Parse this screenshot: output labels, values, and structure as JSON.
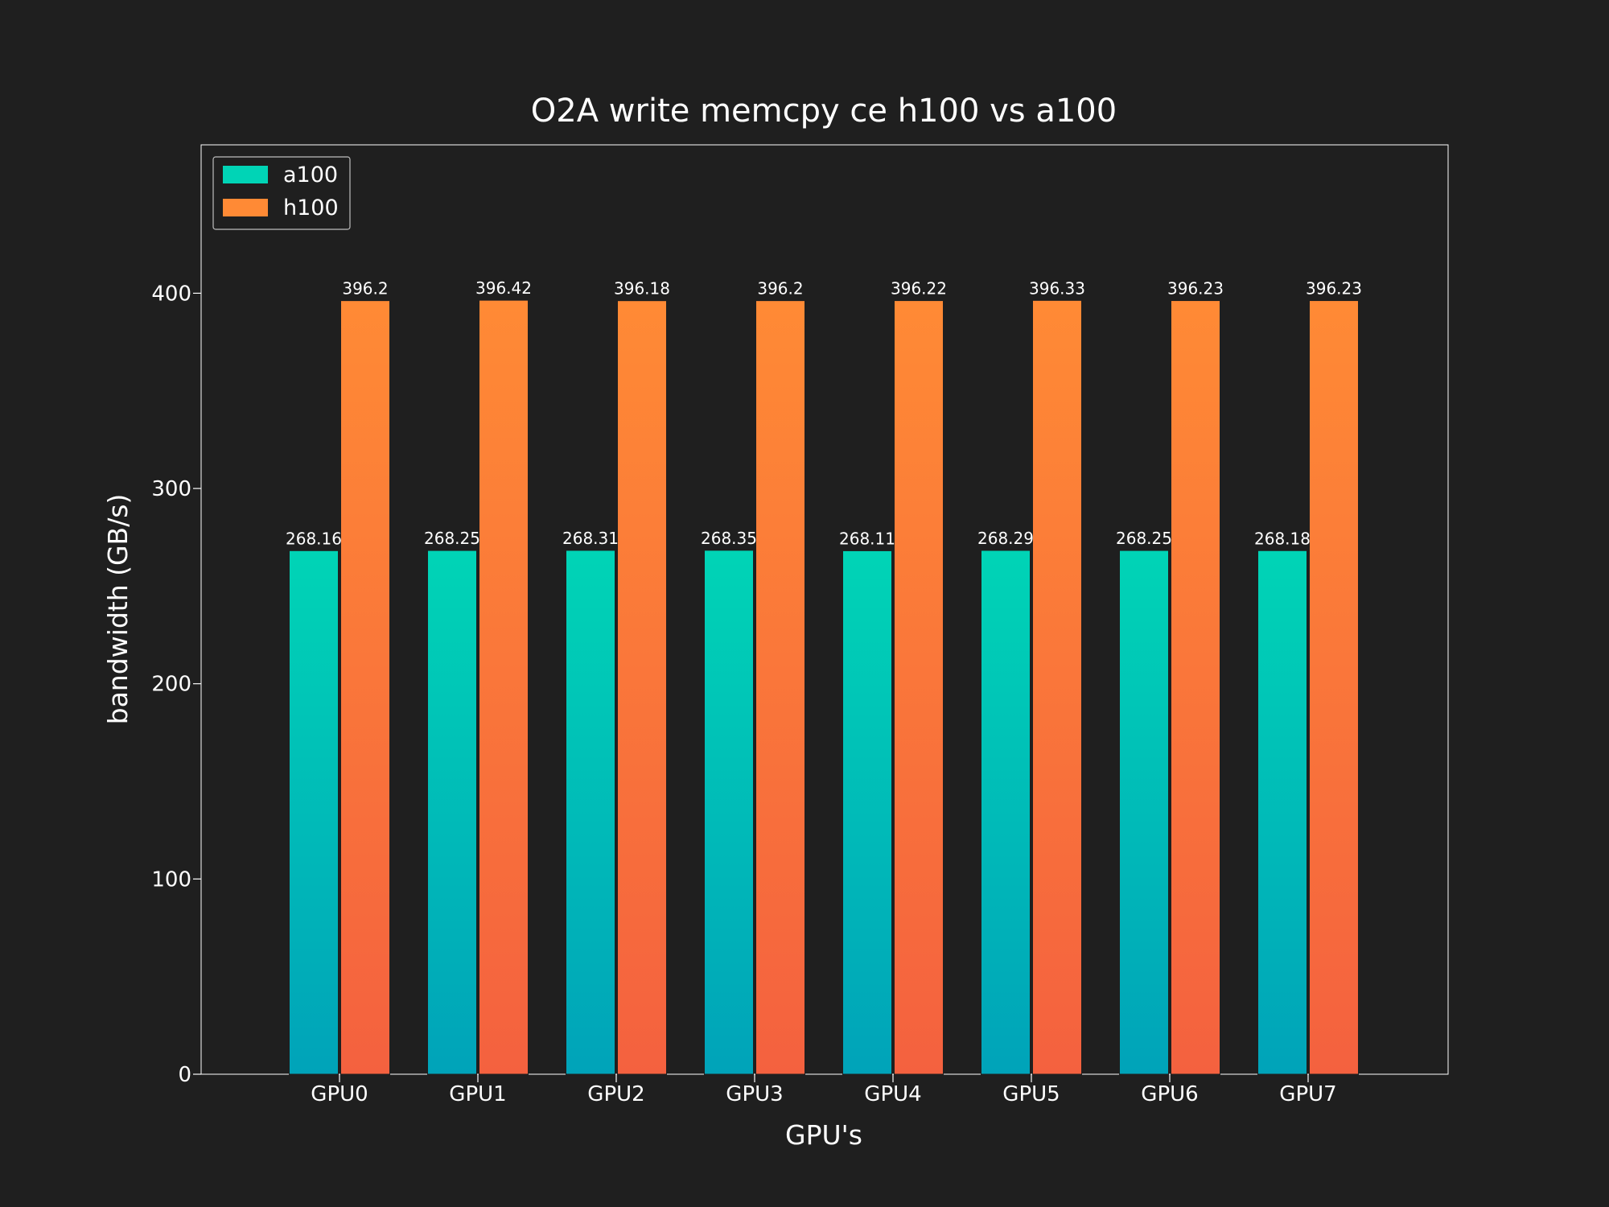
{
  "chart_data": {
    "type": "bar",
    "title": "O2A write memcpy ce h100 vs a100",
    "xlabel": "GPU's",
    "ylabel": "bandwidth (GB/s)",
    "categories": [
      "GPU0",
      "GPU1",
      "GPU2",
      "GPU3",
      "GPU4",
      "GPU5",
      "GPU6",
      "GPU7"
    ],
    "series": [
      {
        "name": "a100",
        "values": [
          268.16,
          268.25,
          268.31,
          268.35,
          268.11,
          268.29,
          268.25,
          268.18
        ],
        "labels": [
          "268.16",
          "268.25",
          "268.31",
          "268.35",
          "268.11",
          "268.29",
          "268.25",
          "268.18"
        ],
        "color_top": "#00d4b6",
        "color_bottom": "#00a3b9",
        "legend_color": "#00d4b6"
      },
      {
        "name": "h100",
        "values": [
          396.2,
          396.42,
          396.18,
          396.2,
          396.22,
          396.33,
          396.23,
          396.23
        ],
        "labels": [
          "396.2",
          "396.42",
          "396.18",
          "396.2",
          "396.22",
          "396.33",
          "396.23",
          "396.23"
        ],
        "color_top": "#ff8a35",
        "color_bottom": "#f4613f",
        "legend_color": "#ff8a35"
      }
    ],
    "yticks": [
      "0",
      "100",
      "200",
      "300",
      "400"
    ],
    "ylim": [
      0,
      476
    ],
    "grid": false,
    "legend_position": "top-left",
    "background_color": "#1f1f1f",
    "text_color": "#ffffff"
  }
}
